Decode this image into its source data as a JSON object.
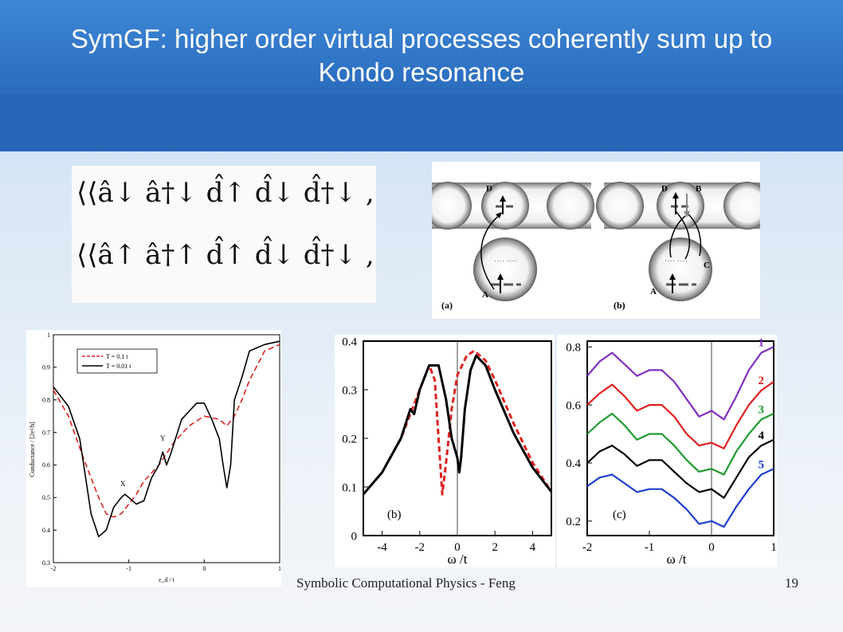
{
  "slide": {
    "title": "SymGF: higher order virtual processes coherently sum up to Kondo resonance",
    "footer": "Symbolic Computational Physics - Feng",
    "page_number": "19",
    "colors": {
      "header": "#2f73c4",
      "red": "#dd2222",
      "black": "#000000"
    }
  },
  "equation_lines": [
    "⟨⟨â↓ â†↓ d̂↑ d̂↓ d̂†↓ , â†↑⟩⟩",
    "⟨⟨â↑ â†↑ d̂↑ d̂↓ d̂†↓ , â†↑⟩⟩"
  ],
  "diagram": {
    "labels": {
      "a": "(a)",
      "b": "(b)",
      "A1": "A",
      "D1": "D",
      "A2": "A",
      "D2": "D",
      "B2": "B",
      "C2": "C"
    }
  },
  "chart_data": [
    {
      "type": "line",
      "xlabel": "ε_d / t",
      "ylabel": "Conductance / [2e²/h]",
      "xlim": [
        -2,
        1
      ],
      "ylim": [
        0.3,
        1
      ],
      "xticks": [
        "-2",
        "-1",
        "0",
        "1"
      ],
      "yticks": [
        "0.3",
        "0.4",
        "0.5",
        "0.6",
        "0.7",
        "0.8",
        "0.9",
        "1"
      ],
      "legend_position": "top-left",
      "annotations": [
        "X",
        "Y"
      ],
      "series": [
        {
          "name": "T = 0.1 t",
          "style": "dashed",
          "color": "#dd2222",
          "x": [
            -2,
            -1.8,
            -1.6,
            -1.4,
            -1.3,
            -1.2,
            -1.1,
            -1,
            -0.9,
            -0.8,
            -0.6,
            -0.4,
            -0.2,
            0,
            0.2,
            0.3,
            0.4,
            0.5,
            0.6,
            0.8,
            1
          ],
          "y": [
            0.83,
            0.75,
            0.62,
            0.5,
            0.45,
            0.44,
            0.45,
            0.48,
            0.51,
            0.55,
            0.6,
            0.67,
            0.72,
            0.75,
            0.74,
            0.72,
            0.75,
            0.8,
            0.86,
            0.95,
            0.97
          ]
        },
        {
          "name": "T = 0.01 t",
          "style": "solid",
          "color": "#000000",
          "x": [
            -2,
            -1.8,
            -1.65,
            -1.5,
            -1.4,
            -1.3,
            -1.2,
            -1.1,
            -1.05,
            -1,
            -0.9,
            -0.8,
            -0.7,
            -0.6,
            -0.55,
            -0.5,
            -0.45,
            -0.3,
            -0.1,
            0,
            0.1,
            0.2,
            0.25,
            0.3,
            0.35,
            0.4,
            0.5,
            0.6,
            0.8,
            1
          ],
          "y": [
            0.84,
            0.78,
            0.68,
            0.45,
            0.38,
            0.4,
            0.47,
            0.5,
            0.51,
            0.5,
            0.48,
            0.49,
            0.56,
            0.6,
            0.64,
            0.6,
            0.63,
            0.74,
            0.79,
            0.79,
            0.74,
            0.68,
            0.6,
            0.53,
            0.6,
            0.8,
            0.87,
            0.95,
            0.97,
            0.98
          ]
        }
      ]
    },
    {
      "type": "line",
      "panel_label": "(b)",
      "xlabel": "ω /t",
      "xlim": [
        -5,
        5
      ],
      "ylim": [
        0,
        0.4
      ],
      "xticks": [
        "-4",
        "-2",
        "0",
        "2",
        "4"
      ],
      "yticks": [
        "0",
        "0.1",
        "0.2",
        "0.3",
        "0.4"
      ],
      "vline": 0,
      "series": [
        {
          "style": "dashed",
          "color": "#dd2222",
          "x": [
            -5,
            -4,
            -3,
            -2.5,
            -2,
            -1.5,
            -1.2,
            -1,
            -0.8,
            -0.6,
            -0.3,
            0,
            0.5,
            0.9,
            1.5,
            2,
            3,
            4,
            5
          ],
          "y": [
            0.085,
            0.13,
            0.2,
            0.25,
            0.3,
            0.35,
            0.32,
            0.2,
            0.085,
            0.15,
            0.26,
            0.33,
            0.37,
            0.38,
            0.36,
            0.32,
            0.23,
            0.15,
            0.09
          ]
        },
        {
          "style": "solid",
          "color": "#000000",
          "x": [
            -5,
            -4,
            -3,
            -2.5,
            -2.3,
            -2,
            -1.5,
            -1,
            -0.6,
            -0.3,
            0,
            0.1,
            0.2,
            0.4,
            0.7,
            1,
            1.5,
            2,
            3,
            4,
            5
          ],
          "y": [
            0.085,
            0.13,
            0.2,
            0.26,
            0.25,
            0.3,
            0.35,
            0.35,
            0.28,
            0.2,
            0.16,
            0.13,
            0.16,
            0.26,
            0.34,
            0.37,
            0.35,
            0.3,
            0.21,
            0.14,
            0.09
          ]
        }
      ]
    },
    {
      "type": "line",
      "panel_label": "(c)",
      "xlabel": "ω /t",
      "xlim": [
        -2,
        1
      ],
      "ylim": [
        0.15,
        0.82
      ],
      "xticks": [
        "-2",
        "-1",
        "0",
        "1"
      ],
      "yticks": [
        "0.2",
        "0.4",
        "0.6",
        "0.8"
      ],
      "vline": 0,
      "series": [
        {
          "name": "1",
          "color": "#7f2fbf",
          "x": [
            -2,
            -1.8,
            -1.6,
            -1.4,
            -1.2,
            -1,
            -0.8,
            -0.6,
            -0.4,
            -0.2,
            0,
            0.2,
            0.4,
            0.6,
            0.8,
            1
          ],
          "y": [
            0.7,
            0.75,
            0.78,
            0.74,
            0.7,
            0.72,
            0.72,
            0.68,
            0.62,
            0.56,
            0.58,
            0.55,
            0.63,
            0.72,
            0.78,
            0.8
          ]
        },
        {
          "name": "2",
          "color": "#e02020",
          "x": [
            -2,
            -1.8,
            -1.6,
            -1.4,
            -1.2,
            -1,
            -0.8,
            -0.6,
            -0.4,
            -0.2,
            0,
            0.2,
            0.4,
            0.6,
            0.8,
            1
          ],
          "y": [
            0.6,
            0.64,
            0.67,
            0.63,
            0.58,
            0.6,
            0.6,
            0.56,
            0.5,
            0.46,
            0.47,
            0.45,
            0.53,
            0.6,
            0.65,
            0.68
          ]
        },
        {
          "name": "3",
          "color": "#1f9a2f",
          "x": [
            -2,
            -1.8,
            -1.6,
            -1.4,
            -1.2,
            -1,
            -0.8,
            -0.6,
            -0.4,
            -0.2,
            0,
            0.2,
            0.4,
            0.6,
            0.8,
            1
          ],
          "y": [
            0.5,
            0.54,
            0.57,
            0.53,
            0.48,
            0.5,
            0.5,
            0.46,
            0.41,
            0.37,
            0.38,
            0.36,
            0.44,
            0.5,
            0.55,
            0.57
          ]
        },
        {
          "name": "4",
          "color": "#000000",
          "x": [
            -2,
            -1.8,
            -1.6,
            -1.4,
            -1.2,
            -1,
            -0.8,
            -0.6,
            -0.4,
            -0.2,
            0,
            0.2,
            0.4,
            0.6,
            0.8,
            1
          ],
          "y": [
            0.4,
            0.44,
            0.46,
            0.43,
            0.39,
            0.41,
            0.41,
            0.37,
            0.33,
            0.3,
            0.31,
            0.28,
            0.35,
            0.42,
            0.46,
            0.48
          ]
        },
        {
          "name": "5",
          "color": "#1f3fcf",
          "x": [
            -2,
            -1.8,
            -1.6,
            -1.4,
            -1.2,
            -1,
            -0.8,
            -0.6,
            -0.4,
            -0.2,
            0,
            0.2,
            0.4,
            0.6,
            0.8,
            1
          ],
          "y": [
            0.32,
            0.35,
            0.36,
            0.33,
            0.3,
            0.31,
            0.31,
            0.28,
            0.24,
            0.19,
            0.2,
            0.18,
            0.25,
            0.31,
            0.36,
            0.38
          ]
        }
      ]
    }
  ]
}
